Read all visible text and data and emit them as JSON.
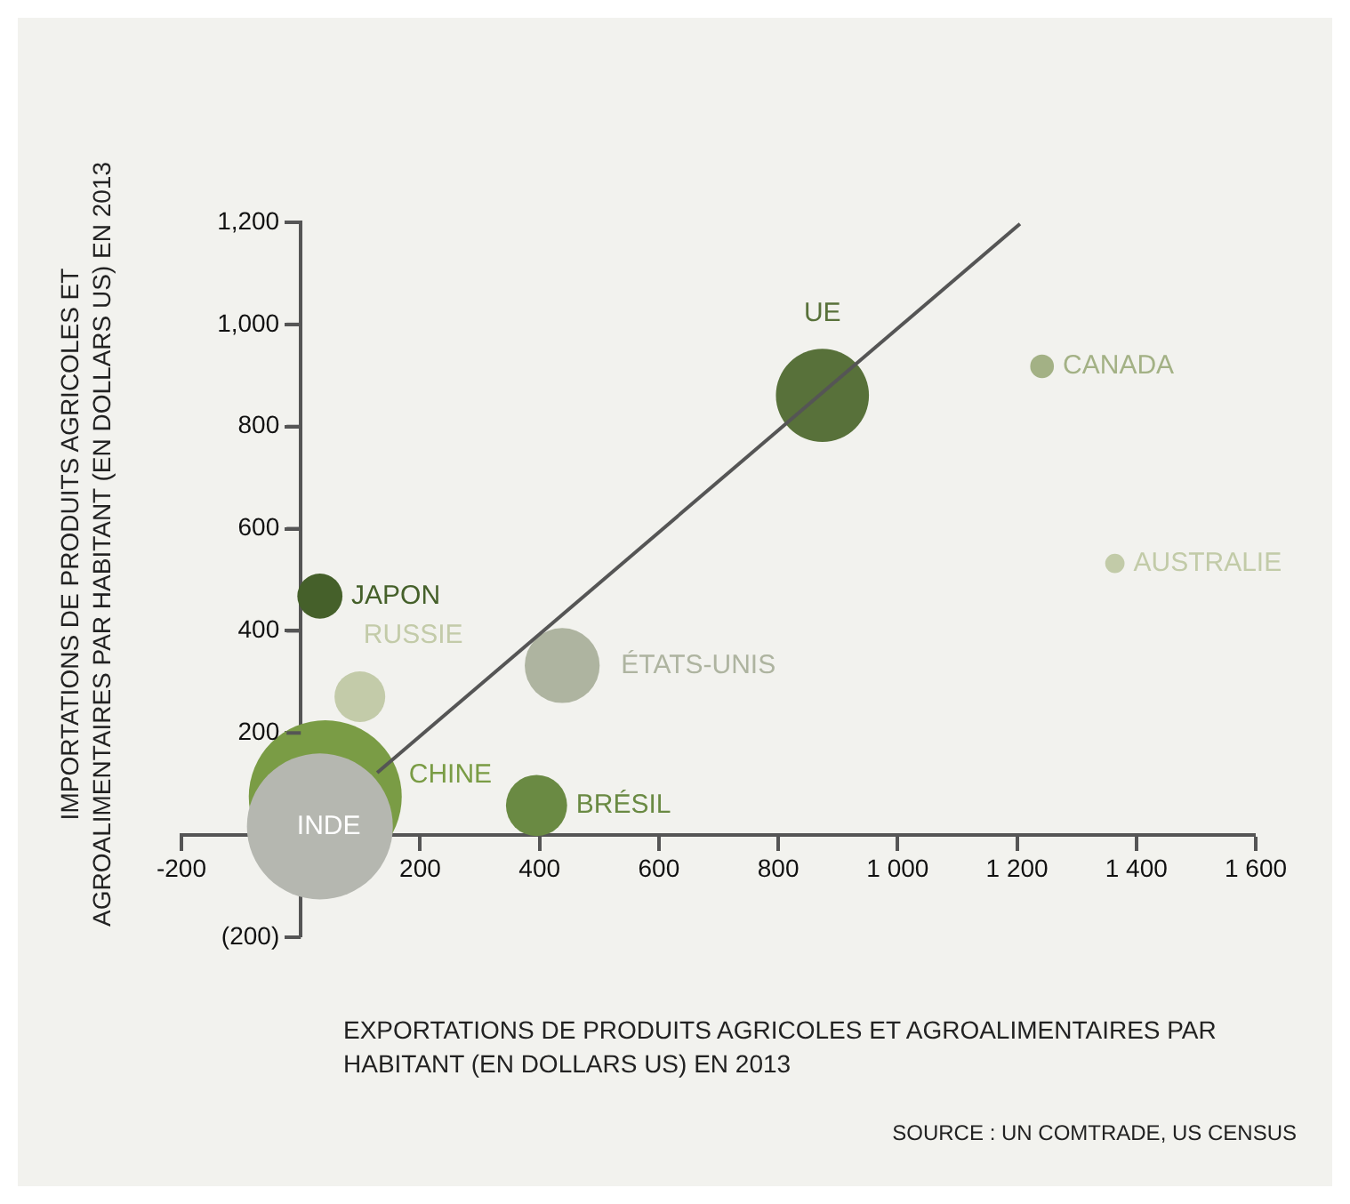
{
  "chart_data": {
    "type": "bubble",
    "xlabel": "EXPORTATIONS DE PRODUITS AGRICOLES ET AGROALIMENTAIRES PAR HABITANT (EN DOLLARS US) EN 2013",
    "ylabel": "IMPORTATIONS DE PRODUITS AGRICOLES ET AGROALIMENTAIRES PAR HABITANT (EN DOLLARS US) EN 2013",
    "annotations": [
      "SOURCE : UN COMTRADE, US CENSUS"
    ],
    "xlim": [
      -200,
      1600
    ],
    "xticks": [
      -200,
      200,
      400,
      600,
      800,
      {
        "value": 1000,
        "label": "1 000"
      },
      {
        "value": 1200,
        "label": "1 200"
      },
      {
        "value": 1400,
        "label": "1 400"
      },
      {
        "value": 1600,
        "label": "1 600"
      }
    ],
    "ylim": [
      -200,
      1200
    ],
    "yticks": [
      {
        "value": -200,
        "label": "(200)"
      },
      200,
      400,
      600,
      800,
      {
        "value": 1000,
        "label": "1,000"
      },
      {
        "value": 1200,
        "label": "1,200"
      }
    ],
    "legend": false,
    "series": [
      {
        "name": "CHINE",
        "color": "#7a9c45",
        "x": [
          41
        ],
        "values": [
          75
        ],
        "sizes": [
          1
        ]
      },
      {
        "name": "INDE",
        "color": "#b5b7b0",
        "x": [
          32
        ],
        "values": [
          17
        ],
        "sizes": [
          0.91
        ]
      },
      {
        "name": "RUSSIE",
        "color": "#c3cba9",
        "x": [
          99
        ],
        "values": [
          271
        ],
        "sizes": [
          0.11
        ]
      },
      {
        "name": "JAPON",
        "color": "#45602a",
        "x": [
          32
        ],
        "values": [
          468
        ],
        "sizes": [
          0.087
        ]
      },
      {
        "name": "ÉTATS-UNIS",
        "color": "#aeb4a0",
        "x": [
          438
        ],
        "values": [
          332
        ],
        "sizes": [
          0.24
        ]
      },
      {
        "name": "BRÉSIL",
        "color": "#6a8a43",
        "x": [
          395
        ],
        "values": [
          58
        ],
        "sizes": [
          0.16
        ]
      },
      {
        "name": "UE",
        "color": "#58713a",
        "x": [
          874
        ],
        "values": [
          861
        ],
        "sizes": [
          0.37
        ]
      },
      {
        "name": "CANADA",
        "color": "#a3b185",
        "x": [
          1242
        ],
        "values": [
          918
        ],
        "sizes": [
          0.024
        ]
      },
      {
        "name": "AUSTRALIE",
        "color": "#c2cba8",
        "x": [
          1364
        ],
        "values": [
          532
        ],
        "sizes": [
          0.016
        ]
      },
      {
        "type": "line",
        "color": "#555555",
        "x": [
          128,
          1205
        ],
        "values": [
          122,
          1197
        ]
      }
    ]
  }
}
